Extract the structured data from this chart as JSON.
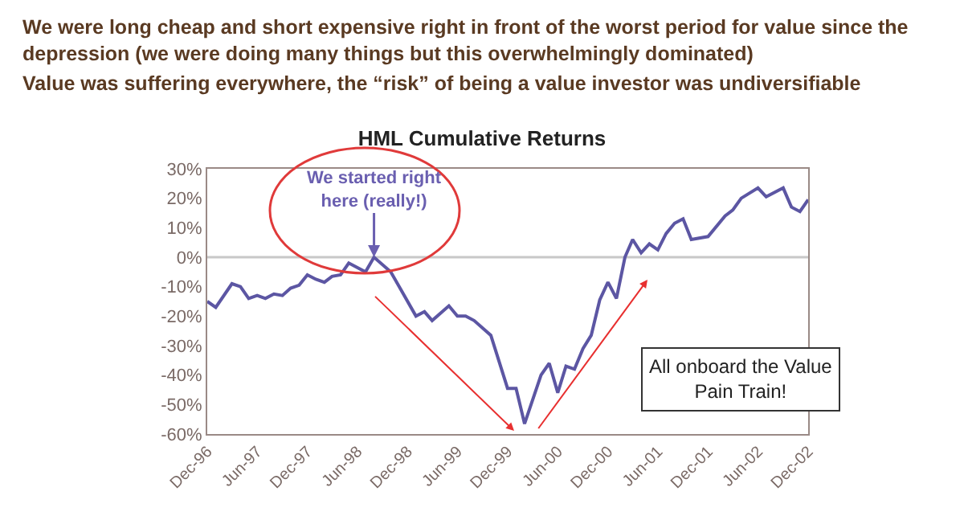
{
  "chart_data": {
    "type": "line",
    "title": "HML Cumulative Returns",
    "x": [
      "1996-12",
      "1997-01",
      "1997-03",
      "1997-04",
      "1997-05",
      "1997-06",
      "1997-07",
      "1997-08",
      "1997-09",
      "1997-10",
      "1997-11",
      "1997-12",
      "1998-01",
      "1998-02",
      "1998-03",
      "1998-04",
      "1998-05",
      "1998-07",
      "1998-08",
      "1998-10",
      "1998-11",
      "1999-01",
      "1999-02",
      "1999-03",
      "1999-05",
      "1999-06",
      "1999-07",
      "1999-08",
      "1999-10",
      "1999-12",
      "2000-01",
      "2000-02",
      "2000-04",
      "2000-05",
      "2000-06",
      "2000-07",
      "2000-08",
      "2000-09",
      "2000-10",
      "2000-11",
      "2000-12",
      "2001-01",
      "2001-02",
      "2001-03",
      "2001-04",
      "2001-05",
      "2001-06",
      "2001-07",
      "2001-08",
      "2001-09",
      "2001-10",
      "2001-12",
      "2002-02",
      "2002-03",
      "2002-04",
      "2002-06",
      "2002-07",
      "2002-09",
      "2002-10",
      "2002-11",
      "2002-12"
    ],
    "series": [
      {
        "color": "#5c56a3",
        "values": [
          -15,
          -17,
          -9,
          -10,
          -14,
          -13,
          -14,
          -12.5,
          -13,
          -10.5,
          -9.5,
          -6,
          -7.5,
          -8.5,
          -6.5,
          -6,
          -2,
          -5,
          0,
          -5,
          -10,
          -20,
          -18.5,
          -21.5,
          -16.5,
          -20,
          -20,
          -21.5,
          -26.5,
          -44.5,
          -44.5,
          -56.5,
          -40,
          -36,
          -46,
          -37,
          -38,
          -31,
          -26.5,
          -14.5,
          -8.5,
          -14,
          0,
          6,
          1.5,
          4.5,
          2.5,
          8,
          11.5,
          13,
          6,
          7,
          14,
          16,
          20,
          23.5,
          20.5,
          23.5,
          17,
          15.5,
          19.5
        ]
      }
    ],
    "xlim": [
      "1996-12",
      "2002-12"
    ],
    "xticks": [
      {
        "value": "1996-12",
        "label": "Dec-96"
      },
      {
        "value": "1997-06",
        "label": "Jun-97"
      },
      {
        "value": "1997-12",
        "label": "Dec-97"
      },
      {
        "value": "1998-06",
        "label": "Jun-98"
      },
      {
        "value": "1998-12",
        "label": "Dec-98"
      },
      {
        "value": "1999-06",
        "label": "Jun-99"
      },
      {
        "value": "1999-12",
        "label": "Dec-99"
      },
      {
        "value": "2000-06",
        "label": "Jun-00"
      },
      {
        "value": "2000-12",
        "label": "Dec-00"
      },
      {
        "value": "2001-06",
        "label": "Jun-01"
      },
      {
        "value": "2001-12",
        "label": "Dec-01"
      },
      {
        "value": "2002-06",
        "label": "Jun-02"
      },
      {
        "value": "2002-12",
        "label": "Dec-02"
      }
    ],
    "ylim": [
      -60,
      30
    ],
    "yticks": [
      {
        "value": 30,
        "label": "30%"
      },
      {
        "value": 20,
        "label": "20%"
      },
      {
        "value": 10,
        "label": "10%"
      },
      {
        "value": 0,
        "label": "0%"
      },
      {
        "value": -10,
        "label": "-10%"
      },
      {
        "value": -20,
        "label": "-20%"
      },
      {
        "value": -30,
        "label": "-30%"
      },
      {
        "value": -40,
        "label": "-40%"
      },
      {
        "value": -50,
        "label": "-50%"
      },
      {
        "value": -60,
        "label": "-60%"
      }
    ],
    "ref_lines": [
      {
        "axis": "y",
        "value": 0,
        "color": "#c8c8c8"
      }
    ],
    "grid": false,
    "legend": false,
    "marker": "none",
    "line_style": "solid",
    "annotations": [
      "We were long cheap and short expensive right in front of the worst period for value since the depression (we were doing many things but this overwhelmingly dominated)",
      "Value was suffering everywhere, the “risk” of being a value investor was undiversifiable",
      {
        "text": "We started right here (really!)",
        "x": "1998-08",
        "y": 0
      },
      "All onboard the Value Pain Train!"
    ]
  }
}
